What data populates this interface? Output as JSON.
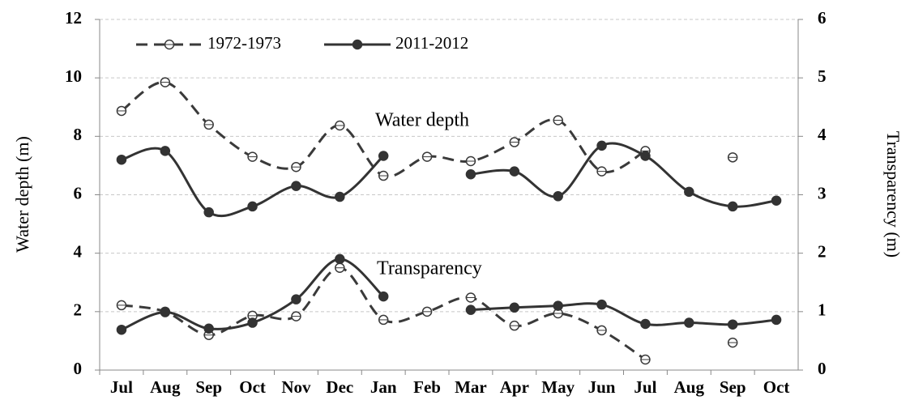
{
  "chart_data": {
    "type": "line",
    "categories": [
      "Jul",
      "Aug",
      "Sep",
      "Oct",
      "Nov",
      "Dec",
      "Jan",
      "Feb",
      "Mar",
      "Apr",
      "May",
      "Jun",
      "Jul",
      "Aug",
      "Sep",
      "Oct"
    ],
    "ylabel": "Water depth (m)",
    "y2label": "Transparency (m)",
    "ylim": [
      0,
      12
    ],
    "yticks": [
      0,
      2,
      4,
      6,
      8,
      10,
      12
    ],
    "y2lim": [
      0,
      6
    ],
    "y2ticks": [
      0,
      1,
      2,
      3,
      4,
      5,
      6
    ],
    "grid": true,
    "annotations": [
      "Water depth",
      "Transparency"
    ],
    "series": [
      {
        "name": "1972-1973",
        "color": "#3a3a3a",
        "dashed": true,
        "marker_fill": "#ffffff",
        "values": [
          8.87,
          9.85,
          8.4,
          7.3,
          6.95,
          8.37,
          6.65,
          7.3,
          7.15,
          7.8,
          8.55,
          6.8,
          7.5,
          null,
          7.28,
          null
        ],
        "y2_values": [
          1.11,
          1.0,
          0.6,
          0.93,
          0.92,
          1.75,
          0.86,
          1.0,
          1.24,
          0.76,
          0.97,
          0.68,
          0.18,
          null,
          0.47,
          null
        ]
      },
      {
        "name": "2011-2012",
        "color": "#333333",
        "dashed": false,
        "marker_fill": "#333333",
        "values": [
          7.2,
          7.5,
          5.4,
          5.6,
          6.3,
          5.93,
          7.33,
          null,
          6.7,
          6.8,
          5.95,
          7.68,
          7.33,
          6.1,
          5.6,
          5.8
        ],
        "y2_values": [
          0.69,
          0.99,
          0.71,
          0.81,
          1.21,
          1.9,
          1.26,
          null,
          1.03,
          1.07,
          1.1,
          1.12,
          0.79,
          0.81,
          0.78,
          0.86
        ]
      }
    ]
  }
}
